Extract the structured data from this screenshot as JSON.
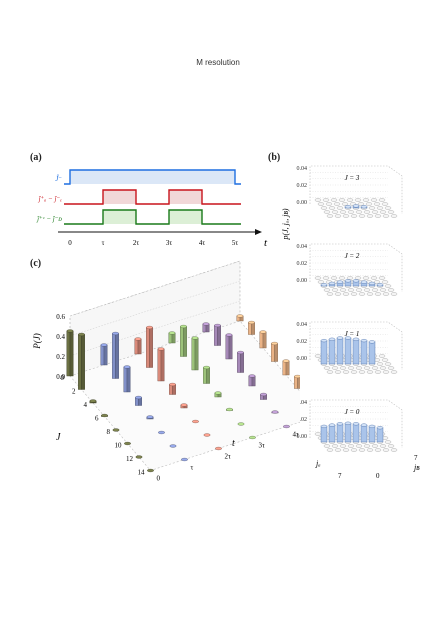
{
  "header_note": "M resolution",
  "panel_a": {
    "letter": "(a)",
    "axis_symbol": "t",
    "traces": [
      {
        "label": "Ĵ⁻",
        "color": "#1f6fe0",
        "fill": "#dbe7f7",
        "segments": [
          [
            0,
            5
          ]
        ]
      },
      {
        "label": "ĵ⁺ₐ − ĵ⁻ₑ",
        "color": "#c8141c",
        "fill": "#f1d7d8",
        "segments": [
          [
            1,
            2
          ],
          [
            3,
            4
          ]
        ]
      },
      {
        "label": "ĵ⁺ᶜ − ĵ⁻ᴅ",
        "color": "#1a7a1a",
        "fill": "#dcefd6",
        "segments": [
          [
            1,
            2
          ],
          [
            3,
            4
          ]
        ]
      }
    ],
    "ticks": [
      "0",
      "τ",
      "2τ",
      "3τ",
      "4τ",
      "5τ"
    ]
  },
  "panel_b": {
    "letter": "(b)",
    "zlabel": "p(J, jₐ, jʙ)",
    "zticks": [
      "0.04",
      "0.02",
      "0.00"
    ],
    "subplots": [
      {
        "label": "J = 3",
        "heights": [
          0,
          0,
          0,
          0.05,
          0.08,
          0.05,
          0,
          0,
          0
        ]
      },
      {
        "label": "J = 2",
        "heights": [
          0.05,
          0.1,
          0.15,
          0.2,
          0.2,
          0.15,
          0.1,
          0.05,
          0
        ]
      },
      {
        "label": "J = 1",
        "heights": [
          0.9,
          0.95,
          1,
          1,
          0.95,
          0.9,
          0.85,
          0,
          0
        ]
      },
      {
        "label": "J = 0",
        "heights": [
          0.6,
          0.65,
          0.7,
          0.72,
          0.7,
          0.65,
          0.6,
          0.55,
          0
        ]
      }
    ],
    "bottom_axis": {
      "left_label": "jₐ",
      "right_label": "jʙ",
      "ticks": [
        "7",
        "0",
        "7"
      ]
    }
  },
  "panel_c": {
    "letter": "(c)",
    "zlabel": "P(J)",
    "zticks": [
      "0.6",
      "0.4",
      "0.2",
      "0.0"
    ],
    "j_label": "J",
    "j_ticks": [
      "0",
      "2",
      "4",
      "6",
      "8",
      "10",
      "12",
      "14"
    ],
    "t_label": "t",
    "t_ticks": [
      "0",
      "τ",
      "2τ",
      "3τ",
      "4τ",
      "5τ"
    ],
    "series": [
      {
        "color": "#6b7043",
        "values": [
          0.45,
          0.55,
          0.02,
          0.01,
          0.0,
          0.0,
          0.0,
          0.0
        ]
      },
      {
        "color": "#8190c8",
        "values": [
          0.2,
          0.45,
          0.25,
          0.08,
          0.02,
          0.0,
          0.0,
          0.0
        ]
      },
      {
        "color": "#d98a7a",
        "values": [
          0.15,
          0.4,
          0.32,
          0.1,
          0.03,
          0.0,
          0.0,
          0.0
        ]
      },
      {
        "color": "#9cc27a",
        "values": [
          0.1,
          0.3,
          0.32,
          0.16,
          0.04,
          0.01,
          0.0,
          0.0
        ]
      },
      {
        "color": "#a689b8",
        "values": [
          0.08,
          0.2,
          0.24,
          0.2,
          0.1,
          0.05,
          0.01,
          0.0
        ]
      },
      {
        "color": "#eab386",
        "values": [
          0.05,
          0.12,
          0.16,
          0.18,
          0.14,
          0.12,
          0.08,
          0.03
        ]
      }
    ]
  }
}
